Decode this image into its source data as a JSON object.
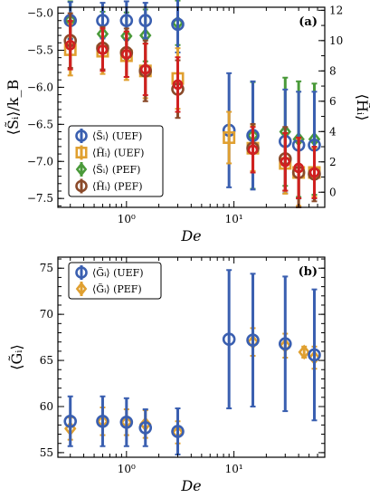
{
  "chart_data": [
    {
      "type": "scatter",
      "panel_letter": "(a)",
      "xlabel": "De",
      "ylabel_left": "⟨S̃ᵢ⟩/k_B",
      "ylabel_right": "⟨H̃ᵢ⟩",
      "xscale": "log",
      "xlim": [
        0.23,
        70
      ],
      "x_tick_labels": [
        "10⁰",
        "10¹"
      ],
      "ylim_left": [
        -7.62,
        -4.92
      ],
      "ylim_right": [
        -1.0,
        12.2
      ],
      "yticks_left": [
        -7.5,
        -7.0,
        -6.5,
        -6.0,
        -5.5,
        -5.0
      ],
      "yticks_left_labels": [
        "−7.5",
        "−7.0",
        "−6.5",
        "−6.0",
        "−5.5",
        "−5.0"
      ],
      "yticks_right": [
        0,
        2,
        4,
        6,
        8,
        10,
        12
      ],
      "yticks_right_labels": [
        "0",
        "2",
        "4",
        "6",
        "8",
        "10",
        "12"
      ],
      "legend": {
        "location": "lower-left",
        "entries": [
          "⟨S̃ᵢ⟩ (UEF)",
          "⟨H̃ᵢ⟩ (UEF)",
          "⟨S̃ᵢ⟩ (PEF)",
          "⟨H̃ᵢ⟩ (PEF)"
        ]
      },
      "series": [
        {
          "legend_label": "⟨S̃ᵢ⟩ (UEF)",
          "color": "#3a5fb0",
          "marker": "circle",
          "axis": "left",
          "x": [
            0.3,
            0.6,
            1.0,
            1.5,
            3.0,
            9.0,
            15.0,
            30.0,
            40.0,
            56.0
          ],
          "y": [
            -5.1,
            -5.1,
            -5.1,
            -5.1,
            -5.15,
            -6.58,
            -6.65,
            -6.73,
            -6.78,
            -6.78
          ],
          "err": [
            0.25,
            0.24,
            0.26,
            0.24,
            0.38,
            0.77,
            0.73,
            0.7,
            0.72,
            0.72
          ]
        },
        {
          "legend_label": "⟨H̃ᵢ⟩ (UEF)",
          "color": "#e0a030",
          "marker": "square",
          "axis": "right",
          "x": [
            0.3,
            0.6,
            1.0,
            1.5,
            3.0,
            9.0,
            15.0,
            30.0,
            40.0,
            56.0
          ],
          "y": [
            9.4,
            9.3,
            9.0,
            8.0,
            7.5,
            3.6,
            2.9,
            1.9,
            1.3,
            1.3
          ],
          "err": [
            1.7,
            1.5,
            1.6,
            1.8,
            2.0,
            1.7,
            1.5,
            2.0,
            2.2,
            1.6
          ]
        },
        {
          "legend_label": "⟨S̃ᵢ⟩ (PEF)",
          "color": "#4a9a3a",
          "marker": "diamond",
          "axis": "left",
          "x": [
            0.3,
            0.6,
            1.0,
            1.5,
            3.0,
            15.0,
            30.0,
            40.0,
            56.0
          ],
          "y": [
            -5.09,
            -5.28,
            -5.31,
            -5.3,
            -5.13,
            -6.65,
            -6.6,
            -6.7,
            -6.7
          ],
          "err": [
            0.25,
            0.3,
            0.32,
            0.35,
            0.3,
            0.72,
            0.73,
            0.78,
            0.75
          ]
        },
        {
          "legend_label": "⟨H̃ᵢ⟩ (PEF)",
          "color": "#8b4a2a",
          "marker": "circle",
          "axis": "right",
          "x": [
            0.3,
            0.6,
            1.0,
            1.5,
            3.0,
            15.0,
            30.0,
            40.0,
            56.0
          ],
          "y": [
            10.0,
            9.5,
            9.2,
            8.0,
            6.8,
            2.9,
            2.2,
            1.3,
            1.2
          ],
          "err": [
            1.8,
            1.4,
            1.6,
            2.0,
            1.9,
            1.6,
            2.1,
            2.3,
            1.8
          ]
        },
        {
          "legend_label": "",
          "color": "#d02020",
          "marker": "circle-small",
          "axis": "right",
          "x": [
            0.3,
            0.6,
            1.0,
            1.5,
            3.0,
            15.0,
            30.0,
            40.0,
            56.0
          ],
          "y": [
            9.7,
            9.4,
            9.1,
            8.1,
            7.1,
            2.8,
            2.0,
            1.6,
            1.3
          ],
          "err": [
            1.6,
            1.4,
            1.5,
            1.7,
            1.8,
            1.5,
            1.9,
            2.0,
            1.7
          ]
        }
      ]
    },
    {
      "type": "scatter",
      "panel_letter": "(b)",
      "xlabel": "De",
      "ylabel": "⟨G̃ᵢ⟩",
      "xscale": "log",
      "xlim": [
        0.23,
        70
      ],
      "x_tick_labels": [
        "10⁰",
        "10¹"
      ],
      "ylim": [
        54.5,
        76.2
      ],
      "yticks": [
        55,
        60,
        65,
        70,
        75
      ],
      "yticks_labels": [
        "55",
        "60",
        "65",
        "70",
        "75"
      ],
      "legend": {
        "location": "top-left",
        "entries": [
          "⟨G̃ᵢ⟩ (UEF)",
          "⟨G̃ᵢ⟩ (PEF)"
        ]
      },
      "series": [
        {
          "legend_label": "⟨G̃ᵢ⟩ (UEF)",
          "color": "#3a5fb0",
          "marker": "circle",
          "x": [
            0.3,
            0.6,
            1.0,
            1.5,
            3.0,
            9.0,
            15.0,
            30.0,
            56.0
          ],
          "y": [
            58.4,
            58.4,
            58.3,
            57.7,
            57.3,
            67.3,
            67.2,
            66.8,
            65.6
          ],
          "err": [
            2.7,
            2.7,
            2.6,
            2.0,
            2.5,
            7.5,
            7.2,
            7.3,
            7.1
          ]
        },
        {
          "legend_label": "⟨G̃ᵢ⟩ (PEF)",
          "color": "#e0a030",
          "marker": "diamond",
          "x": [
            0.3,
            0.6,
            1.0,
            1.5,
            3.0,
            15.0,
            30.0,
            45.0,
            56.0
          ],
          "y": [
            57.6,
            58.4,
            58.3,
            58.1,
            57.2,
            67.0,
            66.6,
            65.9,
            65.3
          ],
          "err": [
            1.2,
            1.5,
            1.4,
            1.5,
            1.2,
            1.5,
            1.3,
            0.6,
            1.2
          ]
        }
      ]
    }
  ]
}
